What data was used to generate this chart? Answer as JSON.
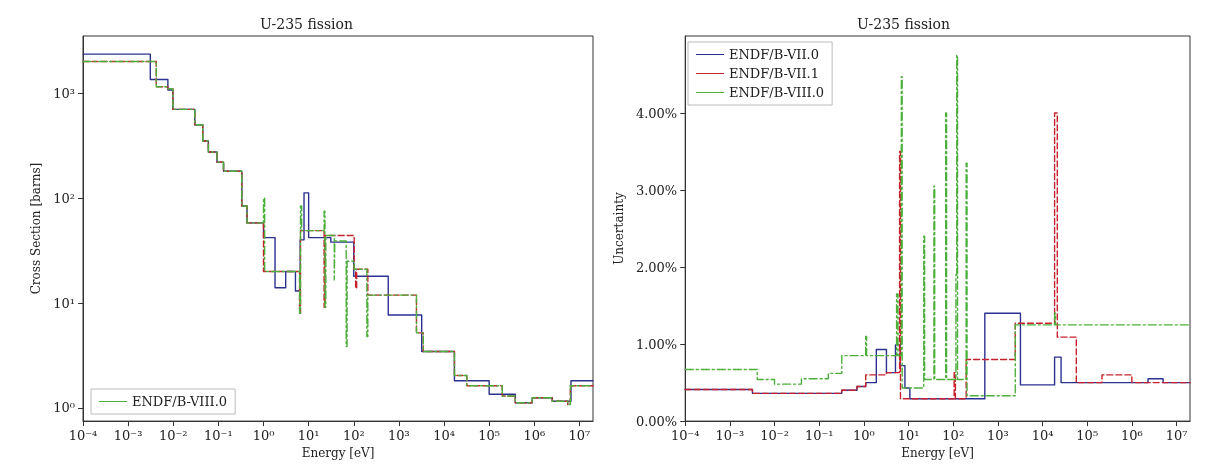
{
  "chart_data": [
    {
      "type": "step",
      "title": "U-235 fission",
      "xlabel": "Energy [eV]",
      "ylabel": "Cross Section [barns]",
      "log": "xy",
      "grid": false,
      "legend": "bottom left",
      "xlim": [
        0.0001,
        20000000
      ],
      "ylim": [
        0.75,
        3500
      ],
      "xticks": [
        {
          "value": 0.0001,
          "label": "10⁻⁴"
        },
        {
          "value": 0.001,
          "label": "10⁻³"
        },
        {
          "value": 0.01,
          "label": "10⁻²"
        },
        {
          "value": 0.1,
          "label": "10⁻¹"
        },
        {
          "value": 1,
          "label": "10⁰"
        },
        {
          "value": 10,
          "label": "10¹"
        },
        {
          "value": 100,
          "label": "10²"
        },
        {
          "value": 1000,
          "label": "10³"
        },
        {
          "value": 10000,
          "label": "10⁴"
        },
        {
          "value": 100000,
          "label": "10⁵"
        },
        {
          "value": 1000000,
          "label": "10⁶"
        },
        {
          "value": 10000000,
          "label": "10⁷"
        }
      ],
      "yticks": [
        {
          "value": 1,
          "label": "10⁰"
        },
        {
          "value": 10,
          "label": "10¹"
        },
        {
          "value": 100,
          "label": "10²"
        },
        {
          "value": 1000,
          "label": "10³"
        }
      ],
      "series": [
        {
          "color": "#2b3190",
          "line_style": "solid",
          "x": [
            0.0001,
            0.0031,
            0.0076,
            0.0098,
            0.03,
            0.045,
            0.06,
            0.093,
            0.13,
            0.33,
            0.43,
            1.0,
            1.8,
            3.1,
            5.1,
            6.5,
            7.9,
            10,
            31,
            100,
            580,
            3200,
            17000,
            100000,
            380000,
            900000,
            2500000,
            6500000,
            20000000
          ],
          "values": [
            2350,
            1350,
            1070,
            700,
            500,
            350,
            275,
            220,
            180,
            84,
            58,
            42,
            14,
            20,
            13,
            40,
            112,
            42,
            38,
            18,
            7.7,
            3.45,
            1.82,
            1.35,
            1.12,
            1.25,
            1.16,
            1.82,
            1.82
          ]
        },
        {
          "color": "#c8202c",
          "line_style": "dashed",
          "x": [
            0.0001,
            0.0042,
            0.0076,
            0.0098,
            0.03,
            0.045,
            0.06,
            0.093,
            0.13,
            0.33,
            0.43,
            1.0,
            6.3,
            6.6,
            22,
            23,
            102,
            110,
            116,
            205,
            2450,
            3470,
            17000,
            32000,
            195000,
            380000,
            900000,
            2500000,
            5500000,
            6300000,
            20000000
          ],
          "values": [
            2000,
            1150,
            1100,
            700,
            500,
            350,
            275,
            220,
            180,
            84,
            58,
            20,
            8,
            49,
            9.1,
            44,
            21,
            13.8,
            21,
            11.9,
            5.2,
            3.45,
            2.04,
            1.63,
            1.3,
            1.12,
            1.25,
            1.16,
            1.08,
            1.63,
            1.63
          ]
        },
        {
          "name": "ENDF/B-VIII.0",
          "color": "#4caf3a",
          "line_style": "dashdot",
          "x": [
            0.0001,
            0.0042,
            0.0076,
            0.0098,
            0.03,
            0.045,
            0.06,
            0.093,
            0.13,
            0.33,
            0.43,
            1.0,
            1.06,
            6.3,
            6.6,
            7.0,
            22,
            23,
            24,
            37,
            38,
            68,
            71,
            102,
            195,
            205,
            2450,
            3470,
            17000,
            32000,
            195000,
            380000,
            900000,
            2500000,
            5500000,
            6300000,
            20000000
          ],
          "values": [
            2000,
            1150,
            1100,
            700,
            500,
            350,
            275,
            220,
            180,
            84,
            58,
            100,
            20,
            8,
            84,
            49,
            75,
            9.1,
            44,
            16.6,
            39,
            3.85,
            25,
            21,
            4.8,
            11.9,
            5.2,
            3.45,
            2.04,
            1.63,
            1.3,
            1.12,
            1.25,
            1.16,
            1.08,
            1.63,
            1.63
          ]
        }
      ]
    },
    {
      "type": "step",
      "title": "U-235 fission",
      "xlabel": "Energy [eV]",
      "ylabel": "Uncertainty",
      "log": "x",
      "grid": false,
      "legend": "top left",
      "xlim": [
        0.0001,
        20000000
      ],
      "ylim": [
        0,
        5
      ],
      "xticks": [
        {
          "value": 0.0001,
          "label": "10⁻⁴"
        },
        {
          "value": 0.001,
          "label": "10⁻³"
        },
        {
          "value": 0.01,
          "label": "10⁻²"
        },
        {
          "value": 0.1,
          "label": "10⁻¹"
        },
        {
          "value": 1,
          "label": "10⁰"
        },
        {
          "value": 10,
          "label": "10¹"
        },
        {
          "value": 100,
          "label": "10²"
        },
        {
          "value": 1000,
          "label": "10³"
        },
        {
          "value": 10000,
          "label": "10⁴"
        },
        {
          "value": 100000,
          "label": "10⁵"
        },
        {
          "value": 1000000,
          "label": "10⁶"
        },
        {
          "value": 10000000,
          "label": "10⁷"
        }
      ],
      "yticks": [
        {
          "value": 0,
          "label": "0.00%"
        },
        {
          "value": 1,
          "label": "1.00%"
        },
        {
          "value": 2,
          "label": "2.00%"
        },
        {
          "value": 3,
          "label": "3.00%"
        },
        {
          "value": 4,
          "label": "4.00%"
        }
      ],
      "series": [
        {
          "name": "ENDF/B-VII.0",
          "color": "#2b3190",
          "line_style": "solid",
          "x": [
            0.0001,
            0.0032,
            0.32,
            0.7,
            1.1,
            1.9,
            3.2,
            5.1,
            6.5,
            8.3,
            10.7,
            510,
            3200,
            18600,
            26000,
            2300000,
            5000000,
            20000000
          ],
          "values": [
            0.41,
            0.36,
            0.4,
            0.45,
            0.5,
            0.93,
            0.63,
            0.99,
            0.72,
            0.43,
            0.29,
            1.4,
            0.47,
            0.83,
            0.5,
            0.55,
            0.5,
            0.5
          ]
        },
        {
          "name": "ENDF/B-VII.1",
          "color": "#c8202c",
          "line_style": "dashed",
          "x": [
            0.0001,
            0.0032,
            0.32,
            0.7,
            1.1,
            3.2,
            6.3,
            6.6,
            105,
            112,
            195,
            2450,
            18600,
            21400,
            57000,
            214000,
            1000000,
            20000000
          ],
          "values": [
            0.41,
            0.36,
            0.4,
            0.45,
            0.6,
            0.63,
            3.5,
            0.29,
            0.63,
            0.29,
            0.8,
            1.27,
            4.0,
            1.09,
            0.5,
            0.6,
            0.5,
            0.5
          ]
        },
        {
          "name": "ENDF/B-VIII.0",
          "color": "#4caf3a",
          "line_style": "dashdot",
          "x": [
            0.0001,
            0.0041,
            0.01,
            0.04,
            0.16,
            0.32,
            1.1,
            1.15,
            5.4,
            5.8,
            6.9,
            7.2,
            21.9,
            22.9,
            37,
            38.5,
            68,
            71,
            115,
            120,
            125,
            195,
            204,
            2450,
            18600,
            19500,
            20000000
          ],
          "values": [
            0.67,
            0.54,
            0.48,
            0.55,
            0.62,
            0.85,
            1.1,
            0.85,
            1.65,
            0.85,
            4.47,
            0.43,
            2.4,
            0.54,
            3.05,
            0.54,
            4.0,
            0.54,
            1.9,
            4.75,
            0.54,
            3.35,
            0.33,
            1.25,
            1.4,
            1.25,
            1.25
          ]
        }
      ]
    }
  ]
}
